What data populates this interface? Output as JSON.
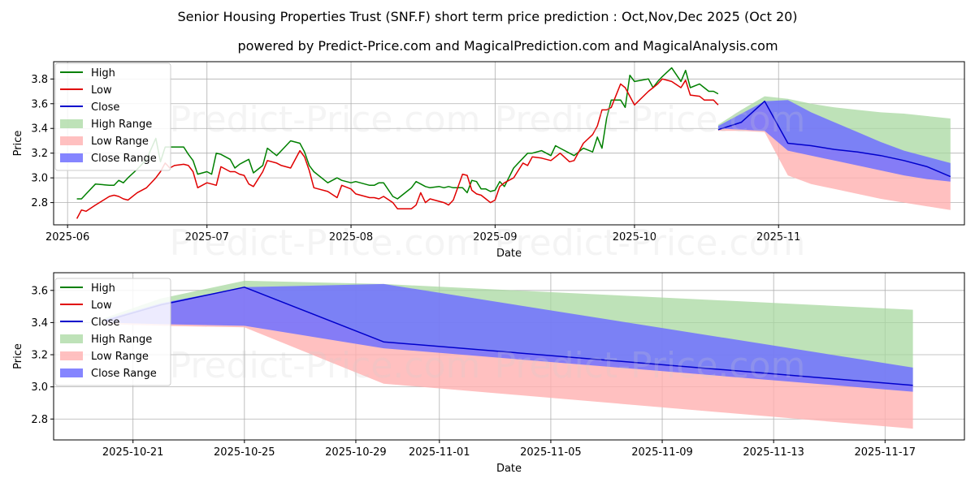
{
  "title": "Senior Housing Properties Trust (SNF.F) short term price prediction : Oct,Nov,Dec 2025 (Oct 20)",
  "subtitle": "powered by Predict-Price.com and MagicalPrediction.com and MagicalAnalysis.com",
  "watermark": "Predict-Price.com",
  "colors": {
    "high": "#008000",
    "low": "#e00000",
    "close": "#0000cc",
    "high_range": "#a8d8a0",
    "low_range": "#ffb0b0",
    "close_range": "#7070ff"
  },
  "chart_data": [
    {
      "type": "line",
      "id": "top",
      "xlabel": "Date",
      "ylabel": "Price",
      "xlim": [
        -3,
        193
      ],
      "ylim": [
        2.62,
        3.94
      ],
      "x_origin_date": "2025-06-01",
      "xticks": [
        {
          "x": 0,
          "label": "2025-06"
        },
        {
          "x": 30,
          "label": "2025-07"
        },
        {
          "x": 61,
          "label": "2025-08"
        },
        {
          "x": 92,
          "label": "2025-09"
        },
        {
          "x": 122,
          "label": "2025-10"
        },
        {
          "x": 153,
          "label": "2025-11"
        }
      ],
      "yticks": [
        2.8,
        3.0,
        3.2,
        3.4,
        3.6,
        3.8
      ],
      "grid": true,
      "legend": {
        "position": "top-left",
        "entries": [
          "High",
          "Low",
          "Close",
          "High Range",
          "Low Range",
          "Close Range"
        ]
      },
      "series": [
        {
          "name": "High",
          "x": [
            2,
            3,
            4,
            6,
            9,
            10,
            11,
            12,
            13,
            15,
            17,
            19,
            20,
            21,
            22,
            23,
            25,
            26,
            27,
            28,
            30,
            31,
            32,
            33,
            35,
            36,
            37,
            38,
            39,
            40,
            42,
            43,
            45,
            46,
            48,
            50,
            51,
            52,
            53,
            56,
            58,
            59,
            61,
            62,
            65,
            66,
            67,
            68,
            70,
            71,
            73,
            74,
            75,
            76,
            77,
            78,
            80,
            81,
            82,
            83,
            85,
            86,
            87,
            88,
            89,
            90,
            91,
            92,
            93,
            94,
            96,
            97,
            98,
            99,
            100,
            102,
            104,
            105,
            106,
            108,
            109,
            111,
            113,
            114,
            115,
            116,
            117,
            119,
            120,
            121,
            122,
            125,
            126,
            127,
            128,
            130,
            132,
            133,
            134,
            136,
            137,
            138,
            139,
            140
          ],
          "y": [
            2.83,
            2.83,
            2.87,
            2.95,
            2.94,
            2.94,
            2.98,
            2.96,
            3.0,
            3.07,
            3.15,
            3.32,
            3.13,
            3.25,
            3.25,
            3.25,
            3.25,
            3.19,
            3.14,
            3.03,
            3.05,
            3.03,
            3.2,
            3.19,
            3.15,
            3.08,
            3.11,
            3.13,
            3.15,
            3.04,
            3.1,
            3.24,
            3.18,
            3.22,
            3.3,
            3.28,
            3.21,
            3.1,
            3.05,
            2.96,
            3.0,
            2.98,
            2.96,
            2.97,
            2.94,
            2.94,
            2.96,
            2.96,
            2.85,
            2.83,
            2.89,
            2.92,
            2.97,
            2.95,
            2.93,
            2.92,
            2.93,
            2.92,
            2.93,
            2.92,
            2.92,
            2.88,
            2.98,
            2.97,
            2.91,
            2.91,
            2.89,
            2.9,
            2.97,
            2.93,
            3.08,
            3.12,
            3.16,
            3.2,
            3.2,
            3.22,
            3.18,
            3.26,
            3.24,
            3.2,
            3.18,
            3.24,
            3.21,
            3.33,
            3.24,
            3.48,
            3.63,
            3.63,
            3.57,
            3.83,
            3.78,
            3.8,
            3.73,
            3.78,
            3.82,
            3.89,
            3.78,
            3.87,
            3.73,
            3.76,
            3.73,
            3.7,
            3.7,
            3.68
          ]
        },
        {
          "name": "Low",
          "x": [
            2,
            3,
            4,
            6,
            9,
            10,
            11,
            12,
            13,
            15,
            17,
            19,
            20,
            21,
            22,
            23,
            25,
            26,
            27,
            28,
            30,
            31,
            32,
            33,
            35,
            36,
            37,
            38,
            39,
            40,
            42,
            43,
            45,
            46,
            48,
            50,
            51,
            52,
            53,
            56,
            58,
            59,
            61,
            62,
            65,
            66,
            67,
            68,
            70,
            71,
            73,
            74,
            75,
            76,
            77,
            78,
            80,
            81,
            82,
            83,
            85,
            86,
            87,
            88,
            89,
            90,
            91,
            92,
            93,
            94,
            96,
            97,
            98,
            99,
            100,
            102,
            104,
            105,
            106,
            108,
            109,
            111,
            113,
            114,
            115,
            116,
            117,
            119,
            120,
            121,
            122,
            125,
            126,
            127,
            128,
            130,
            132,
            133,
            134,
            136,
            137,
            138,
            139,
            140
          ],
          "y": [
            2.67,
            2.74,
            2.73,
            2.78,
            2.85,
            2.86,
            2.85,
            2.83,
            2.82,
            2.88,
            2.92,
            3.0,
            3.05,
            3.12,
            3.08,
            3.1,
            3.11,
            3.1,
            3.05,
            2.92,
            2.96,
            2.95,
            2.94,
            3.09,
            3.05,
            3.05,
            3.03,
            3.02,
            2.95,
            2.93,
            3.05,
            3.14,
            3.12,
            3.1,
            3.08,
            3.22,
            3.17,
            3.06,
            2.92,
            2.89,
            2.84,
            2.94,
            2.91,
            2.87,
            2.84,
            2.84,
            2.83,
            2.85,
            2.8,
            2.75,
            2.75,
            2.75,
            2.78,
            2.88,
            2.8,
            2.83,
            2.81,
            2.8,
            2.78,
            2.82,
            3.03,
            3.02,
            2.9,
            2.87,
            2.86,
            2.83,
            2.8,
            2.82,
            2.93,
            2.96,
            3.0,
            3.06,
            3.12,
            3.1,
            3.17,
            3.16,
            3.14,
            3.17,
            3.2,
            3.13,
            3.14,
            3.28,
            3.35,
            3.42,
            3.55,
            3.55,
            3.57,
            3.76,
            3.73,
            3.66,
            3.59,
            3.7,
            3.73,
            3.76,
            3.8,
            3.78,
            3.73,
            3.79,
            3.67,
            3.66,
            3.63,
            3.63,
            3.63,
            3.59
          ]
        },
        {
          "name": "Close",
          "x": [
            140,
            145,
            150,
            155,
            160,
            165,
            170,
            175,
            180,
            185,
            190
          ],
          "y": [
            3.39,
            3.45,
            3.62,
            3.28,
            3.26,
            3.23,
            3.21,
            3.18,
            3.14,
            3.09,
            3.01
          ]
        },
        {
          "name": "High Range",
          "x": [
            140,
            145,
            150,
            155,
            160,
            165,
            170,
            175,
            180,
            185,
            190
          ],
          "y_upper": [
            3.43,
            3.55,
            3.66,
            3.64,
            3.6,
            3.57,
            3.55,
            3.53,
            3.52,
            3.5,
            3.48
          ],
          "y_lower": [
            3.39,
            3.45,
            3.62,
            3.28,
            3.26,
            3.23,
            3.21,
            3.18,
            3.14,
            3.09,
            3.01
          ]
        },
        {
          "name": "Low Range",
          "x": [
            140,
            145,
            150,
            155,
            160,
            165,
            170,
            175,
            180,
            185,
            190
          ],
          "y_upper": [
            3.39,
            3.45,
            3.62,
            3.28,
            3.26,
            3.23,
            3.21,
            3.18,
            3.14,
            3.09,
            3.01
          ],
          "y_lower": [
            3.38,
            3.38,
            3.37,
            3.02,
            2.95,
            2.91,
            2.87,
            2.83,
            2.8,
            2.77,
            2.74
          ]
        },
        {
          "name": "Close Range",
          "x": [
            140,
            145,
            150,
            155,
            160,
            165,
            170,
            175,
            180,
            185,
            190
          ],
          "y_upper": [
            3.42,
            3.52,
            3.62,
            3.63,
            3.53,
            3.45,
            3.37,
            3.29,
            3.22,
            3.17,
            3.12
          ],
          "y_lower": [
            3.4,
            3.39,
            3.38,
            3.22,
            3.18,
            3.14,
            3.1,
            3.06,
            3.02,
            2.99,
            2.97
          ]
        }
      ]
    },
    {
      "type": "line",
      "id": "bottom",
      "xlabel": "Date",
      "ylabel": "Price",
      "xlim": [
        -1.85,
        30.85
      ],
      "ylim": [
        2.67,
        3.71
      ],
      "x_origin_date": "2025-10-20",
      "xticks": [
        {
          "x": 1,
          "label": "2025-10-21"
        },
        {
          "x": 5,
          "label": "2025-10-25"
        },
        {
          "x": 9,
          "label": "2025-10-29"
        },
        {
          "x": 12,
          "label": "2025-11-01"
        },
        {
          "x": 16,
          "label": "2025-11-05"
        },
        {
          "x": 20,
          "label": "2025-11-09"
        },
        {
          "x": 24,
          "label": "2025-11-13"
        },
        {
          "x": 28,
          "label": "2025-11-17"
        }
      ],
      "yticks": [
        2.8,
        3.0,
        3.2,
        3.4,
        3.6
      ],
      "grid": true,
      "legend": {
        "position": "top-left",
        "entries": [
          "High",
          "Low",
          "Close",
          "High Range",
          "Low Range",
          "Close Range"
        ]
      },
      "series": [
        {
          "name": "Close",
          "x": [
            0,
            2,
            5,
            10,
            29
          ],
          "y": [
            3.41,
            3.51,
            3.62,
            3.28,
            3.01
          ]
        },
        {
          "name": "High Range",
          "x": [
            0,
            2,
            5,
            10,
            29
          ],
          "y_upper": [
            3.43,
            3.55,
            3.66,
            3.64,
            3.48
          ],
          "y_lower": [
            3.41,
            3.51,
            3.62,
            3.28,
            3.01
          ]
        },
        {
          "name": "Low Range",
          "x": [
            0,
            2,
            5,
            10,
            29
          ],
          "y_upper": [
            3.41,
            3.51,
            3.62,
            3.28,
            3.01
          ],
          "y_lower": [
            3.39,
            3.38,
            3.37,
            3.02,
            2.74
          ]
        },
        {
          "name": "Close Range",
          "x": [
            0,
            2,
            5,
            10,
            29
          ],
          "y_upper": [
            3.42,
            3.52,
            3.62,
            3.64,
            3.12
          ],
          "y_lower": [
            3.4,
            3.39,
            3.38,
            3.24,
            2.97
          ]
        }
      ]
    }
  ]
}
